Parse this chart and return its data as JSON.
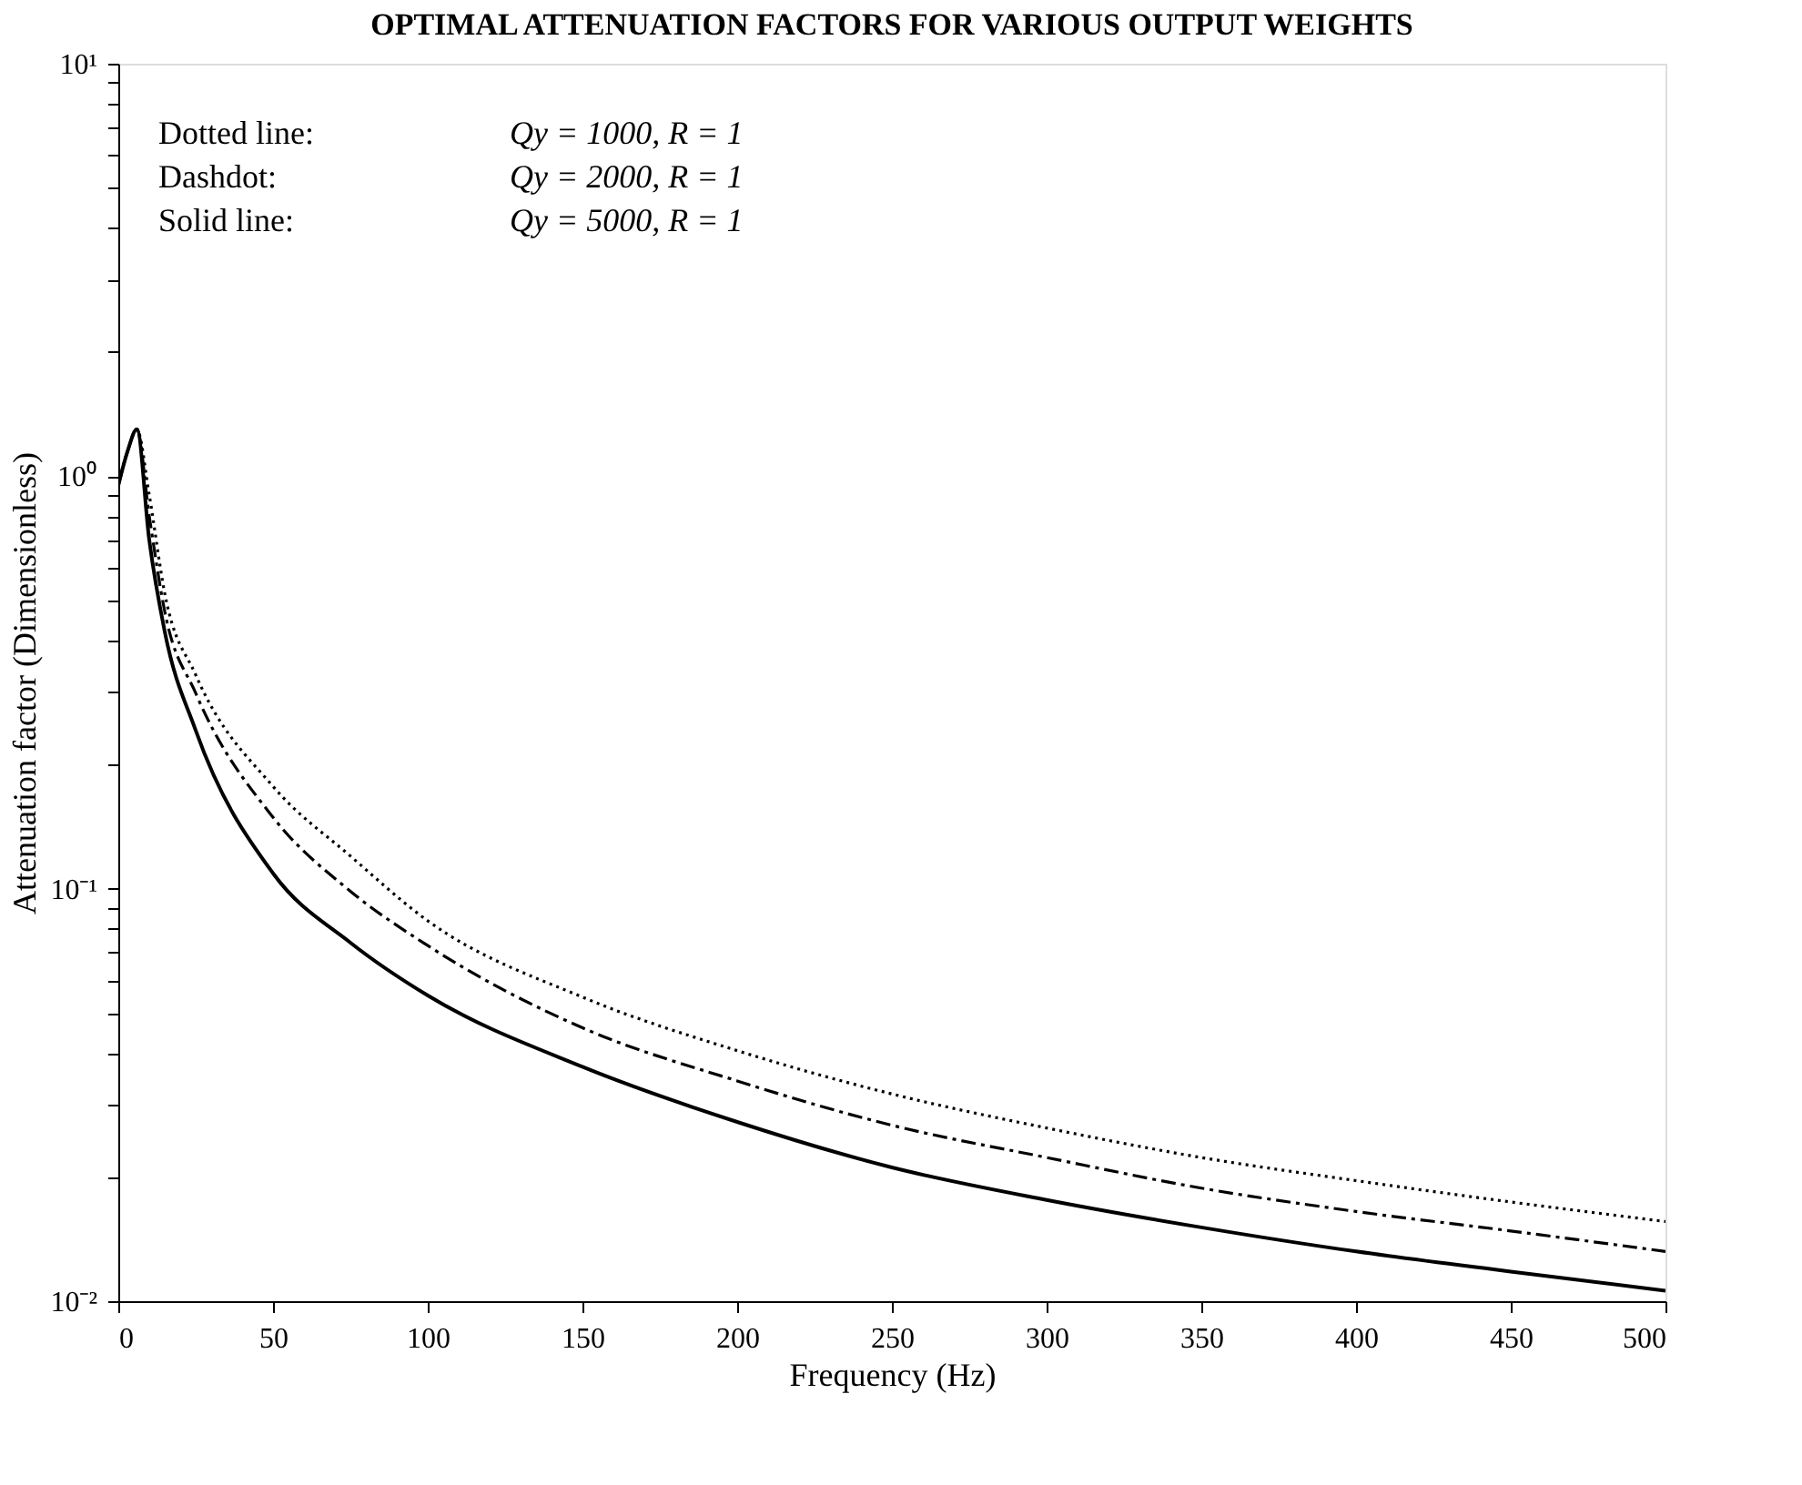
{
  "chart_data": {
    "type": "line",
    "title": "OPTIMAL ATTENUATION FACTORS FOR VARIOUS OUTPUT WEIGHTS",
    "xlabel": "Frequency (Hz)",
    "ylabel": "Attenuation factor (Dimensionless)",
    "annotations": [
      "Dotted line:",
      "Qy = 1000, R = 1",
      "Dashdot:",
      "Qy = 2000, R = 1",
      "Solid line:",
      "Qy = 5000, R = 1"
    ],
    "x": [
      0,
      3,
      6,
      10,
      15,
      25,
      50,
      75,
      100,
      150,
      200,
      250,
      300,
      350,
      400,
      450,
      500
    ],
    "series": [
      {
        "color": "#000000",
        "line_style": "dotted",
        "values": [
          0.95,
          1.15,
          1.3,
          0.9,
          0.52,
          0.33,
          0.177,
          0.12,
          0.0836,
          0.0546,
          0.0405,
          0.0318,
          0.0263,
          0.0223,
          0.0196,
          0.0174,
          0.0156
        ]
      },
      {
        "color": "#000000",
        "line_style": "dashdot",
        "values": [
          0.95,
          1.15,
          1.3,
          0.8,
          0.47,
          0.298,
          0.149,
          0.0986,
          0.0728,
          0.046,
          0.0342,
          0.0267,
          0.0223,
          0.0188,
          0.0165,
          0.0148,
          0.0132
        ]
      },
      {
        "color": "#000000",
        "line_style": "solid",
        "values": [
          0.95,
          1.15,
          1.3,
          0.7,
          0.42,
          0.242,
          0.109,
          0.074,
          0.0551,
          0.037,
          0.0272,
          0.0211,
          0.0176,
          0.0151,
          0.0132,
          0.0118,
          0.0106
        ]
      }
    ],
    "log": "y",
    "grid": false,
    "marker": "none",
    "xlim": [
      0,
      500
    ],
    "xticks": [
      0,
      50,
      100,
      150,
      200,
      250,
      300,
      350,
      400,
      450,
      500
    ],
    "ylim": [
      0.01,
      10
    ],
    "yticks": [
      {
        "value": 0.01,
        "label": "10⁻²"
      },
      {
        "value": 0.02,
        "label": null
      },
      {
        "value": 0.03,
        "label": null
      },
      {
        "value": 0.04,
        "label": null
      },
      {
        "value": 0.05,
        "label": null
      },
      {
        "value": 0.06,
        "label": null
      },
      {
        "value": 0.07,
        "label": null
      },
      {
        "value": 0.08,
        "label": null
      },
      {
        "value": 0.09,
        "label": null
      },
      {
        "value": 0.1,
        "label": "10⁻¹"
      },
      {
        "value": 0.2,
        "label": null
      },
      {
        "value": 0.3,
        "label": null
      },
      {
        "value": 0.4,
        "label": null
      },
      {
        "value": 0.5,
        "label": null
      },
      {
        "value": 0.6,
        "label": null
      },
      {
        "value": 0.7,
        "label": null
      },
      {
        "value": 0.8,
        "label": null
      },
      {
        "value": 0.9,
        "label": null
      },
      {
        "value": 1,
        "label": "10⁰"
      },
      {
        "value": 2,
        "label": null
      },
      {
        "value": 3,
        "label": null
      },
      {
        "value": 4,
        "label": null
      },
      {
        "value": 5,
        "label": null
      },
      {
        "value": 6,
        "label": null
      },
      {
        "value": 7,
        "label": null
      },
      {
        "value": 8,
        "label": null
      },
      {
        "value": 9,
        "label": null
      },
      {
        "value": 10,
        "label": "10¹"
      }
    ]
  }
}
